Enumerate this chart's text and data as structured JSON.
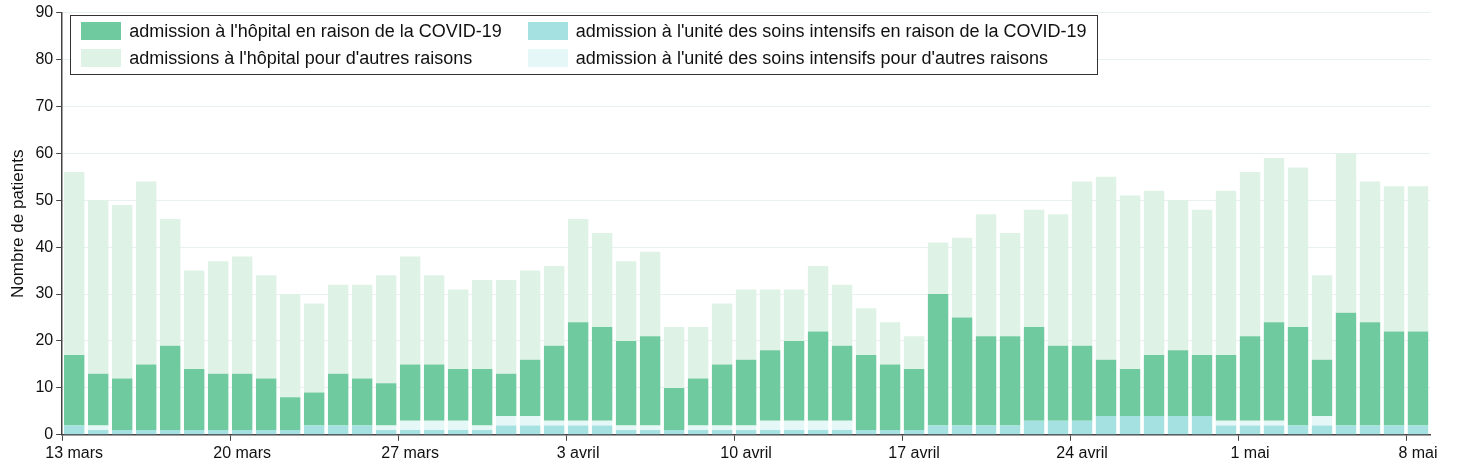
{
  "chart_data": {
    "type": "bar",
    "stacked": true,
    "ylabel": "Nombre de patients",
    "ylim": [
      0,
      90
    ],
    "yticks": [
      0,
      10,
      20,
      30,
      40,
      50,
      60,
      70,
      80,
      90
    ],
    "grid": "y",
    "legend": "top left",
    "categories": [
      "13 mars",
      null,
      null,
      null,
      null,
      null,
      null,
      "20 mars",
      null,
      null,
      null,
      null,
      null,
      null,
      "27 mars",
      null,
      null,
      null,
      null,
      null,
      null,
      "3 avril",
      null,
      null,
      null,
      null,
      null,
      null,
      "10 avril",
      null,
      null,
      null,
      null,
      null,
      null,
      "17 avril",
      null,
      null,
      null,
      null,
      null,
      null,
      "24 avril",
      null,
      null,
      null,
      null,
      null,
      null,
      "1 mai",
      null,
      null,
      null,
      null,
      null,
      null,
      "8 mai"
    ],
    "series": [
      {
        "name": "admission à l'unité des soins intensifs en raison de la COVID-19",
        "color": "#a6e1e1",
        "values": [
          2,
          1,
          1,
          1,
          1,
          1,
          1,
          1,
          1,
          1,
          2,
          2,
          2,
          1,
          1,
          1,
          1,
          1,
          2,
          2,
          2,
          2,
          2,
          1,
          1,
          1,
          1,
          1,
          1,
          1,
          1,
          1,
          1,
          1,
          1,
          1,
          2,
          2,
          2,
          2,
          3,
          3,
          3,
          4,
          4,
          4,
          4,
          4,
          2,
          2,
          2,
          2,
          2,
          2,
          2,
          2,
          2
        ]
      },
      {
        "name": "admission à l'unité des soins intensifs pour d'autres raisons",
        "color": "#e6f7f8",
        "values": [
          0,
          1,
          0,
          0,
          0,
          0,
          0,
          0,
          0,
          0,
          0,
          0,
          0,
          1,
          2,
          2,
          2,
          1,
          2,
          2,
          1,
          1,
          1,
          1,
          1,
          0,
          1,
          1,
          1,
          2,
          2,
          2,
          2,
          0,
          0,
          0,
          0,
          0,
          0,
          0,
          0,
          0,
          0,
          0,
          0,
          0,
          0,
          0,
          1,
          1,
          1,
          0,
          2,
          0,
          0,
          0,
          0
        ]
      },
      {
        "name": "admission à l'hôpital en raison de la COVID-19",
        "color": "#6fcb9f",
        "values": [
          15,
          11,
          11,
          14,
          18,
          13,
          12,
          12,
          11,
          7,
          7,
          11,
          10,
          9,
          12,
          12,
          11,
          12,
          9,
          12,
          16,
          21,
          20,
          18,
          19,
          9,
          10,
          13,
          14,
          15,
          17,
          19,
          16,
          16,
          14,
          13,
          28,
          23,
          19,
          19,
          20,
          16,
          16,
          12,
          10,
          13,
          14,
          13,
          14,
          18,
          21,
          21,
          12,
          24,
          22,
          20,
          20
        ]
      },
      {
        "name": "admissions à l'hôpital pour d'autres raisons",
        "color": "#dff2e6",
        "values": [
          39,
          37,
          37,
          39,
          27,
          21,
          24,
          25,
          22,
          22,
          19,
          19,
          20,
          23,
          23,
          19,
          17,
          19,
          20,
          19,
          17,
          22,
          20,
          17,
          18,
          13,
          11,
          13,
          15,
          13,
          11,
          14,
          13,
          10,
          9,
          7,
          11,
          17,
          26,
          22,
          25,
          28,
          35,
          39,
          37,
          35,
          32,
          31,
          35,
          35,
          35,
          34,
          18,
          34,
          30,
          31,
          31
        ]
      }
    ]
  }
}
